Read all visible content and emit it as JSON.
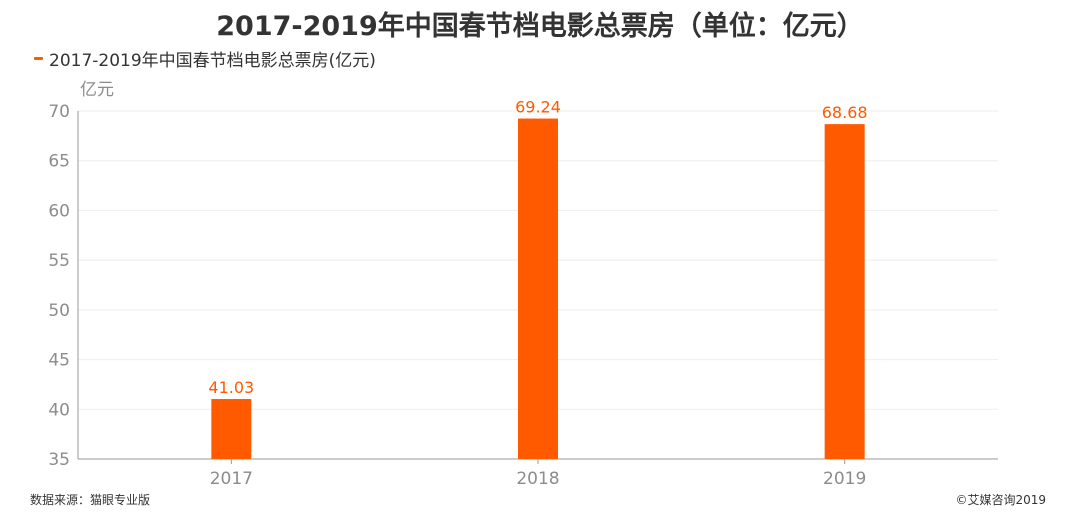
{
  "title": "2017-2019年中国春节档电影总票房（单位：亿元）",
  "legend": {
    "label": "2017-2019年中国春节档电影总票房(亿元)"
  },
  "footer": {
    "source": "数据来源：猫眼专业版",
    "copyright": "©艾媒咨询2019"
  },
  "colors": {
    "bar": "#ff5a00",
    "axis_text": "#8c8c8c",
    "grid": "#eeeeee"
  },
  "chart_data": {
    "type": "bar",
    "title": "2017-2019年中国春节档电影总票房（单位：亿元）",
    "ylabel": "亿元",
    "xlabel": "",
    "categories": [
      "2017",
      "2018",
      "2019"
    ],
    "series": [
      {
        "name": "2017-2019年中国春节档电影总票房(亿元)",
        "values": [
          41.03,
          69.24,
          68.68
        ]
      }
    ],
    "ylim": [
      35,
      70
    ],
    "yticks": [
      35,
      40,
      45,
      50,
      55,
      60,
      65,
      70
    ],
    "grid": true,
    "legend_position": "top-left"
  }
}
